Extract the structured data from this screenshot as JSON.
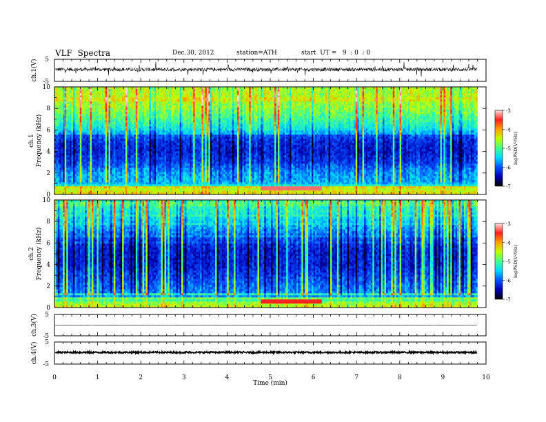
{
  "header": {
    "title": "VLF  Spectra",
    "date": "Dec.30, 2012",
    "station": "station=ATH",
    "start": "start  UT =   9  : 0  : 0"
  },
  "colors": {
    "colormap": [
      "#000000",
      "#0000b0",
      "#0050ff",
      "#00d8ff",
      "#40ff90",
      "#c0ff00",
      "#ffa000",
      "#ff2020",
      "#ffe0e0"
    ],
    "waveform": "#000000"
  },
  "chart_data": [
    {
      "type": "line",
      "panel": "ch1-waveform",
      "ylabel": "ch.1(V)",
      "xlim": [
        0,
        10
      ],
      "ylim": [
        -5,
        5
      ],
      "ytick_labels": [
        "5",
        "-5"
      ],
      "data_end_min": 9.8,
      "baseline_v": 0.4,
      "noise_amplitude_v": 0.8,
      "spike_amplitude_v": 3
    },
    {
      "type": "heatmap",
      "panel": "ch1-spectrogram",
      "ylabel": "ch.1\nFrequency  (kHz)",
      "xlim": [
        0,
        10
      ],
      "ylim": [
        0,
        10
      ],
      "ytick_labels": [
        "0",
        "2",
        "4",
        "6",
        "8",
        "10"
      ],
      "data_end_min": 9.8,
      "profile": {
        "freq_khz": [
          0,
          0.5,
          1,
          2,
          3,
          4,
          5,
          5.5,
          6,
          7,
          8,
          9,
          10
        ],
        "log_psd": [
          -4.2,
          -4.5,
          -5.6,
          -5.7,
          -6.1,
          -6.3,
          -6.2,
          -6.0,
          -5.4,
          -5.0,
          -4.7,
          -4.5,
          -4.6
        ]
      },
      "event_band": {
        "t_start_min": 4.8,
        "t_end_min": 6.2,
        "freq_khz": 0.6,
        "log_psd": -3.3
      },
      "colorbar": {
        "label": "logPSD(V²/Hz)",
        "range": [
          -7,
          -3
        ],
        "tick_labels": [
          "-3",
          "-4",
          "-5",
          "-6",
          "-7"
        ]
      }
    },
    {
      "type": "heatmap",
      "panel": "ch2-spectrogram",
      "ylabel": "ch.2\nFrequency  (kHz)",
      "xlim": [
        0,
        10
      ],
      "ylim": [
        0,
        10
      ],
      "ytick_labels": [
        "0",
        "2",
        "4",
        "6",
        "8",
        "10"
      ],
      "data_end_min": 9.8,
      "profile": {
        "freq_khz": [
          0,
          0.5,
          1,
          2,
          3,
          4,
          5,
          6,
          7,
          8,
          9,
          10
        ],
        "log_psd": [
          -4.4,
          -4.7,
          -5.7,
          -5.9,
          -6.1,
          -6.3,
          -6.3,
          -6.2,
          -5.8,
          -5.5,
          -5.2,
          -5.0
        ]
      },
      "event_band": {
        "t_start_min": 4.8,
        "t_end_min": 6.2,
        "freq_khz": 0.6,
        "log_psd": -3.5
      },
      "colorbar": {
        "label": "logPSD(V²/Hz)",
        "range": [
          -7,
          -3
        ],
        "tick_labels": [
          "-3",
          "-4",
          "-5",
          "-6",
          "-7"
        ]
      }
    },
    {
      "type": "line",
      "panel": "ch3-waveform",
      "ylabel": "ch.3(V)",
      "xlim": [
        0,
        10
      ],
      "ylim": [
        -5,
        5
      ],
      "ytick_labels": [
        "5",
        "-5"
      ],
      "data_end_min": 9.8,
      "baseline_v": 0.0,
      "noise_amplitude_v": 0.08,
      "spike_amplitude_v": 0
    },
    {
      "type": "line",
      "panel": "ch4-waveform",
      "ylabel": "ch.4(V)",
      "xlim": [
        0,
        10
      ],
      "ylim": [
        -5,
        5
      ],
      "ytick_labels": [
        "5",
        "-5"
      ],
      "data_end_min": 9.8,
      "baseline_v": 0.3,
      "noise_amplitude_v": 0.35,
      "spike_amplitude_v": 0
    }
  ],
  "x_axis": {
    "label": "Time  (min)",
    "tick_labels": [
      "0",
      "1",
      "2",
      "3",
      "4",
      "5",
      "6",
      "7",
      "8",
      "9",
      "10"
    ]
  }
}
